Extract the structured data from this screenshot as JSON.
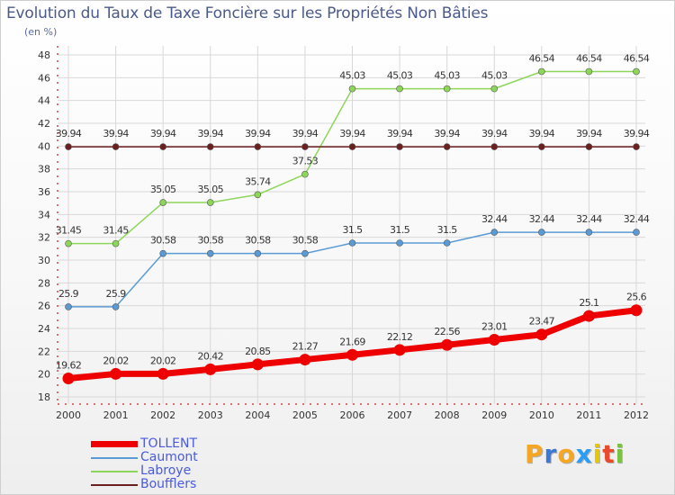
{
  "title": "Evolution du Taux de Taxe Foncière sur les Propriétés Non Bâties",
  "subtitle": "(en %)",
  "logo": {
    "letters": [
      "P",
      "r",
      "o",
      "x",
      "i",
      "t",
      "i"
    ],
    "colors": [
      "#f5a623",
      "#3b78d8",
      "#f5a623",
      "#2a9df4",
      "#e8c700",
      "#e84a2a",
      "#7cc242"
    ]
  },
  "chart_data": {
    "type": "line",
    "x": [
      "2000",
      "2001",
      "2002",
      "2003",
      "2004",
      "2005",
      "2006",
      "2007",
      "2008",
      "2009",
      "2010",
      "2011",
      "2012"
    ],
    "ylim": [
      18,
      48
    ],
    "yticks": [
      "18",
      "20",
      "22",
      "24",
      "26",
      "28",
      "30",
      "32",
      "34",
      "36",
      "38",
      "40",
      "42",
      "44",
      "46",
      "48"
    ],
    "grid": true,
    "legend_position": "bottom-left",
    "series": [
      {
        "name": "TOLLENT",
        "color": "#ee0000",
        "values": [
          19.62,
          20.02,
          20.02,
          20.42,
          20.85,
          21.27,
          21.69,
          22.12,
          22.56,
          23.01,
          23.47,
          25.1,
          25.6
        ],
        "labels": [
          "19.62",
          "20.02",
          "20.02",
          "20.42",
          "20.85",
          "21.27",
          "21.69",
          "22.12",
          "22.56",
          "23.01",
          "23.47",
          "25.1",
          "25.6"
        ]
      },
      {
        "name": "Caumont",
        "color": "#5b9bd5",
        "values": [
          25.9,
          25.9,
          30.58,
          30.58,
          30.58,
          30.58,
          31.5,
          31.5,
          31.5,
          32.44,
          32.44,
          32.44,
          32.44
        ],
        "labels": [
          "25.9",
          "25.9",
          "30.58",
          "30.58",
          "30.58",
          "30.58",
          "31.5",
          "31.5",
          "31.5",
          "32.44",
          "32.44",
          "32.44",
          "32.44"
        ]
      },
      {
        "name": "Labroye",
        "color": "#8ed65a",
        "values": [
          31.45,
          31.45,
          35.05,
          35.05,
          35.74,
          37.53,
          45.03,
          45.03,
          45.03,
          45.03,
          46.54,
          46.54,
          46.54
        ],
        "labels": [
          "31.45",
          "31.45",
          "35.05",
          "35.05",
          "35.74",
          "37.53",
          "45.03",
          "45.03",
          "45.03",
          "45.03",
          "46.54",
          "46.54",
          "46.54"
        ]
      },
      {
        "name": "Boufflers",
        "color": "#6b1f1f",
        "values": [
          39.94,
          39.94,
          39.94,
          39.94,
          39.94,
          39.94,
          39.94,
          39.94,
          39.94,
          39.94,
          39.94,
          39.94,
          39.94
        ],
        "labels": [
          "39.94",
          "39.94",
          "39.94",
          "39.94",
          "39.94",
          "39.94",
          "39.94",
          "39.94",
          "39.94",
          "39.94",
          "39.94",
          "39.94",
          "39.94"
        ]
      }
    ]
  }
}
